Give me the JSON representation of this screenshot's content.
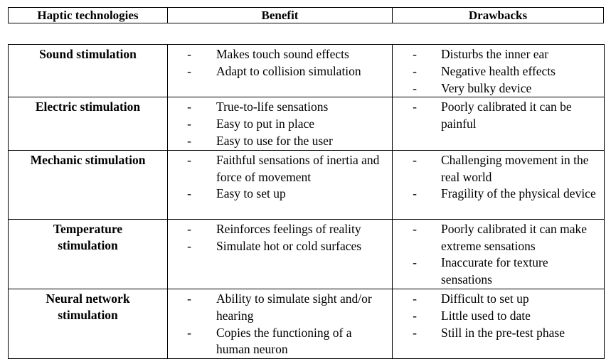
{
  "header": {
    "col1": "Haptic technologies",
    "col2": "Benefit",
    "col3": "Drawbacks"
  },
  "rows": [
    {
      "name": [
        "Sound stimulation"
      ],
      "benefits": [
        "Makes touch sound effects",
        "Adapt to collision simulation"
      ],
      "drawbacks": [
        "Disturbs the inner ear",
        "Negative health effects",
        "Very bulky device"
      ]
    },
    {
      "name": [
        "Electric stimulation"
      ],
      "benefits": [
        "True-to-life sensations",
        "Easy to put in place",
        "Easy to use for the user"
      ],
      "drawbacks": [
        "Poorly calibrated it can be painful"
      ]
    },
    {
      "name": [
        "Mechanic stimulation"
      ],
      "benefits": [
        "Faithful sensations of inertia and force of movement",
        "Easy to set up"
      ],
      "drawbacks": [
        "Challenging movement in the real world",
        "Fragility of the physical device"
      ]
    },
    {
      "name": [
        "Temperature",
        "stimulation"
      ],
      "benefits": [
        "Reinforces feelings of reality",
        "Simulate hot or cold surfaces"
      ],
      "drawbacks": [
        "Poorly calibrated it can make extreme sensations",
        "Inaccurate for texture sensations"
      ]
    },
    {
      "name": [
        "Neural network",
        "stimulation"
      ],
      "benefits": [
        "Ability to simulate sight and/or hearing",
        "Copies the functioning of a human neuron"
      ],
      "drawbacks": [
        "Difficult to set up",
        "Little used to date",
        "Still in the pre-test phase"
      ]
    }
  ],
  "bullet": "-"
}
